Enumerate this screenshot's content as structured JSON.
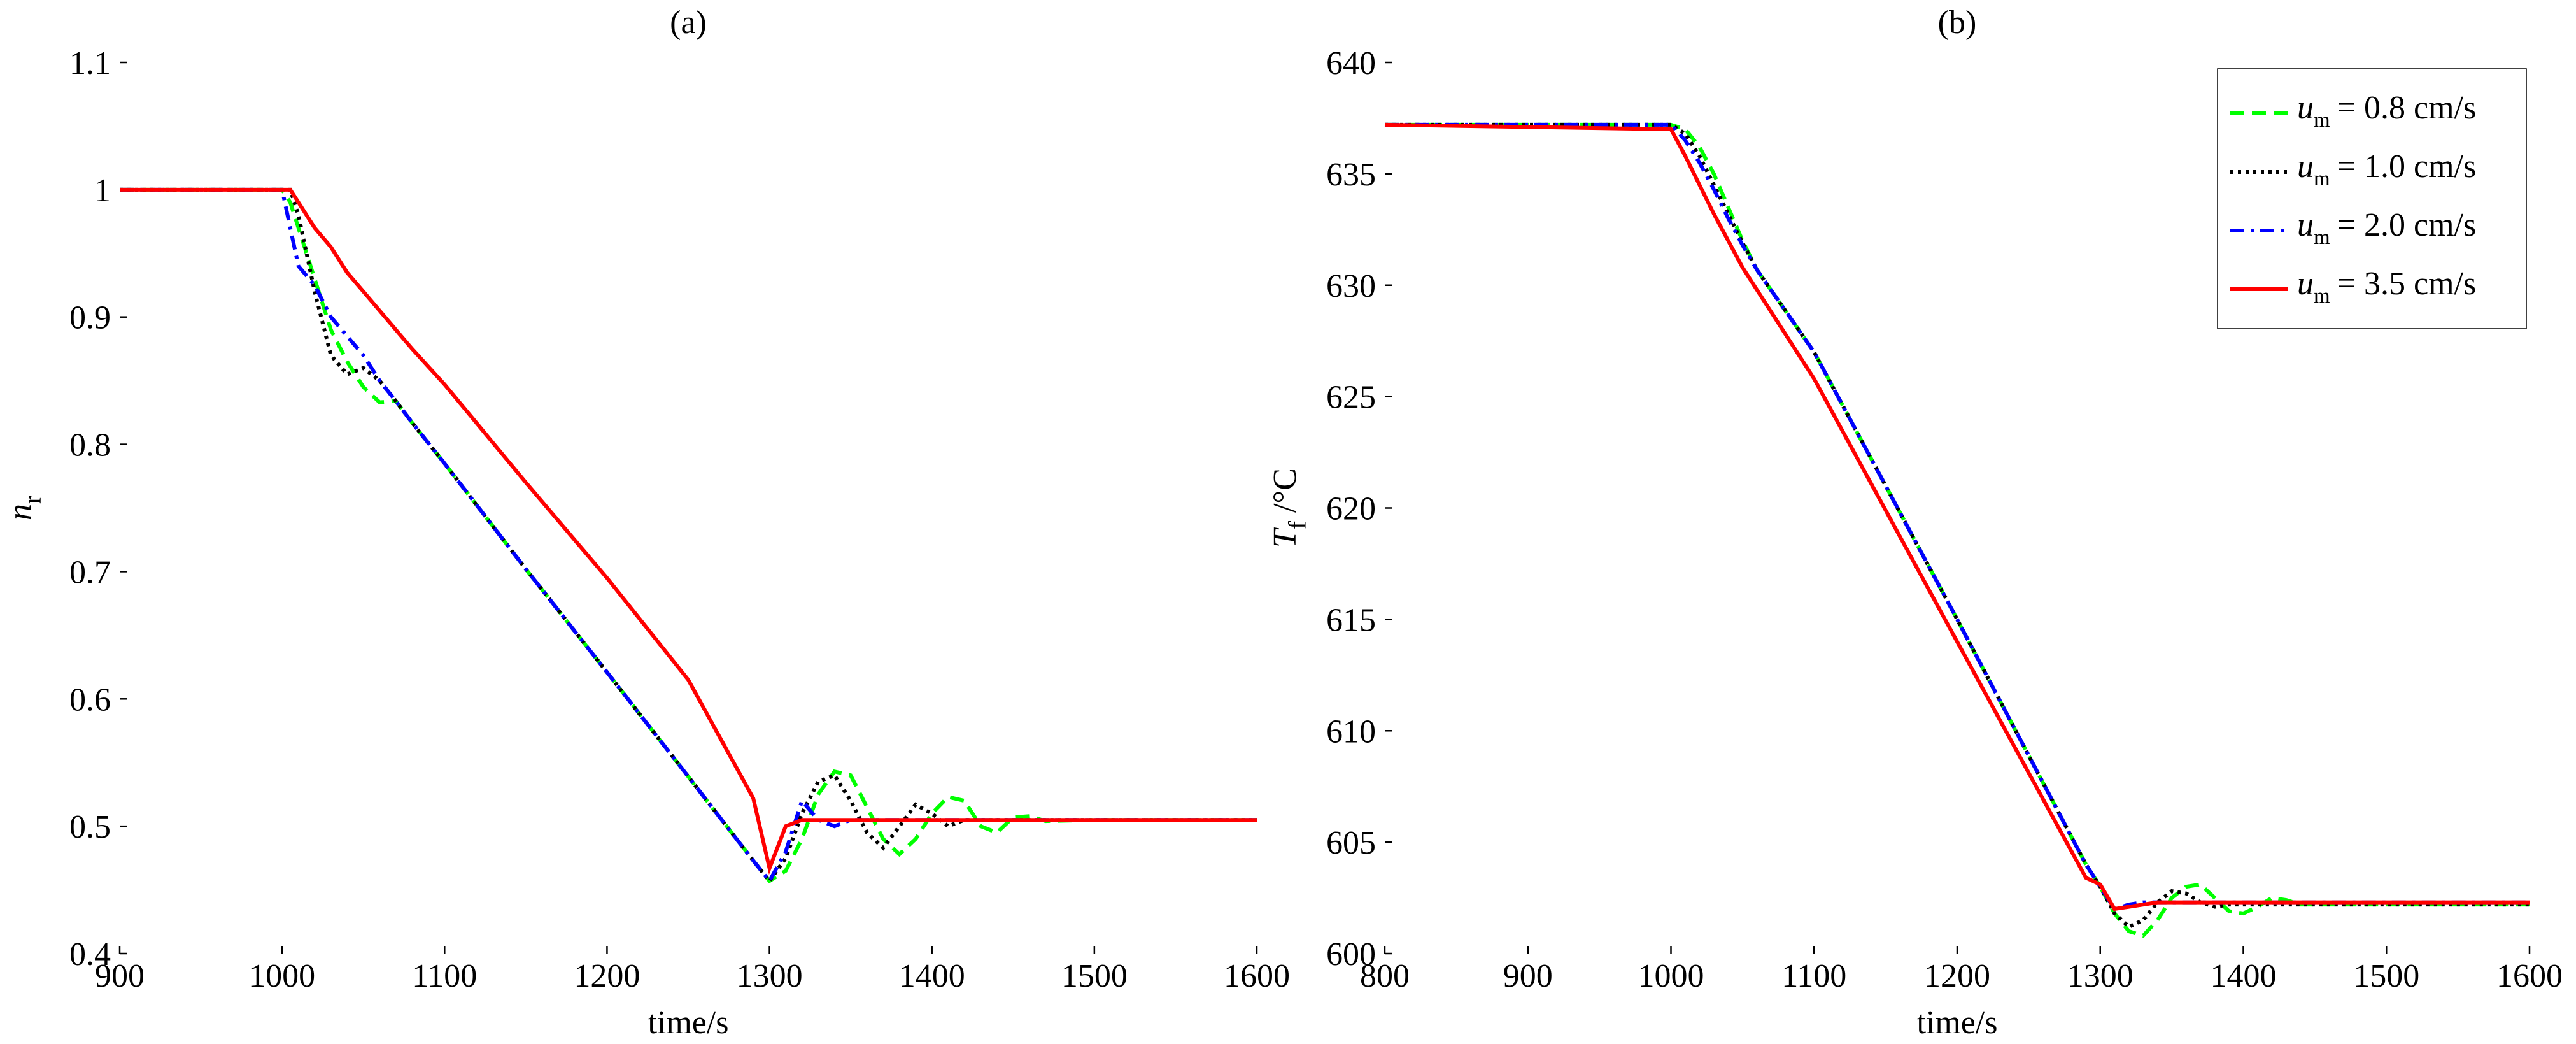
{
  "chart_data": [
    {
      "type": "line",
      "title": "(a)",
      "xlabel": "time/s",
      "ylabel": {
        "symbol": "n",
        "sub": "r"
      },
      "xlim": [
        900,
        1600
      ],
      "xticks": [
        900,
        1000,
        1100,
        1200,
        1300,
        1400,
        1500,
        1600
      ],
      "ylim": [
        0.4,
        1.1
      ],
      "yticks": [
        0.4,
        0.5,
        0.6,
        0.7,
        0.8,
        0.9,
        1,
        1.1
      ],
      "x": [
        900,
        1000,
        1005,
        1010,
        1020,
        1030,
        1040,
        1050,
        1060,
        1070,
        1080,
        1100,
        1150,
        1200,
        1250,
        1290,
        1300,
        1310,
        1320,
        1330,
        1340,
        1350,
        1360,
        1370,
        1380,
        1390,
        1400,
        1410,
        1420,
        1430,
        1440,
        1450,
        1460,
        1470,
        1500,
        1600
      ],
      "series": [
        {
          "color": "#00ff00",
          "style": "dashed",
          "values": [
            1,
            1,
            0.99,
            0.97,
            0.93,
            0.89,
            0.865,
            0.845,
            0.833,
            0.834,
            0.817,
            0.785,
            0.702,
            0.621,
            0.539,
            0.473,
            0.457,
            0.465,
            0.49,
            0.525,
            0.543,
            0.54,
            0.515,
            0.49,
            0.478,
            0.49,
            0.51,
            0.523,
            0.52,
            0.5,
            0.495,
            0.507,
            0.508,
            0.504,
            0.505,
            0.505
          ]
        },
        {
          "color": "#000000",
          "style": "dotted",
          "values": [
            1,
            1,
            1.0,
            0.98,
            0.92,
            0.87,
            0.855,
            0.86,
            0.85,
            0.834,
            0.817,
            0.785,
            0.702,
            0.621,
            0.539,
            0.473,
            0.457,
            0.475,
            0.51,
            0.535,
            0.54,
            0.52,
            0.495,
            0.483,
            0.5,
            0.517,
            0.51,
            0.5,
            0.505,
            0.505,
            0.505,
            0.505,
            0.505,
            0.505,
            0.505,
            0.505
          ]
        },
        {
          "color": "#0000ff",
          "style": "dashdot",
          "values": [
            1,
            1,
            0.97,
            0.94,
            0.925,
            0.9,
            0.885,
            0.87,
            0.85,
            0.834,
            0.817,
            0.785,
            0.702,
            0.621,
            0.539,
            0.473,
            0.457,
            0.48,
            0.52,
            0.505,
            0.5,
            0.505,
            0.505,
            0.505,
            0.505,
            0.505,
            0.505,
            0.505,
            0.505,
            0.505,
            0.505,
            0.505,
            0.505,
            0.505,
            0.505,
            0.505
          ]
        },
        {
          "color": "#ff0000",
          "style": "solid",
          "values": [
            1,
            1,
            1.0,
            0.99,
            0.97,
            0.955,
            0.935,
            0.92,
            0.905,
            0.89,
            0.875,
            0.847,
            0.77,
            0.695,
            0.615,
            0.522,
            0.467,
            0.5,
            0.505,
            0.505,
            0.505,
            0.505,
            0.505,
            0.505,
            0.505,
            0.505,
            0.505,
            0.505,
            0.505,
            0.505,
            0.505,
            0.505,
            0.505,
            0.505,
            0.505,
            0.505
          ]
        }
      ]
    },
    {
      "type": "line",
      "title": "(b)",
      "xlabel": "time/s",
      "ylabel": {
        "symbol": "T",
        "sub": "f",
        "text": "/°C"
      },
      "xlim": [
        800,
        1600
      ],
      "xticks": [
        800,
        900,
        1000,
        1100,
        1200,
        1300,
        1400,
        1500,
        1600
      ],
      "ylim": [
        600,
        640
      ],
      "yticks": [
        600,
        605,
        610,
        615,
        620,
        625,
        630,
        635,
        640
      ],
      "legend": "upper right",
      "x": [
        800,
        1000,
        1010,
        1020,
        1030,
        1040,
        1050,
        1060,
        1100,
        1200,
        1290,
        1300,
        1310,
        1320,
        1330,
        1340,
        1350,
        1360,
        1370,
        1380,
        1390,
        1400,
        1410,
        1420,
        1430,
        1440,
        1600
      ],
      "series": [
        {
          "name": {
            "symbol": "u",
            "sub": "m",
            "text": "= 0.8 cm/s"
          },
          "color": "#00ff00",
          "style": "dashed",
          "values": [
            637.2,
            637.2,
            637,
            636.2,
            635,
            633.5,
            632,
            630.7,
            627,
            615,
            604,
            603,
            601.8,
            601,
            600.8,
            601.5,
            602.5,
            603,
            603.1,
            602.5,
            601.9,
            601.8,
            602.1,
            602.5,
            602.4,
            602.2,
            602.2
          ]
        },
        {
          "name": {
            "symbol": "u",
            "sub": "m",
            "text": "= 1.0 cm/s"
          },
          "color": "#000000",
          "style": "dotted",
          "values": [
            637.2,
            637.2,
            636.8,
            635.8,
            634.5,
            633.2,
            631.9,
            630.7,
            627,
            615,
            604,
            603,
            601.8,
            601.2,
            601.5,
            602.3,
            602.8,
            602.7,
            602.3,
            602.1,
            602.2,
            602.2,
            602.2,
            602.2,
            602.2,
            602.2,
            602.2
          ]
        },
        {
          "name": {
            "symbol": "u",
            "sub": "m",
            "text": "= 2.0 cm/s"
          },
          "color": "#0000ff",
          "style": "dashdot",
          "values": [
            637.2,
            637.2,
            636.5,
            635.5,
            634.3,
            633,
            631.8,
            630.7,
            627,
            615,
            604,
            603,
            602,
            602.2,
            602.3,
            602.3,
            602.3,
            602.3,
            602.3,
            602.3,
            602.3,
            602.3,
            602.3,
            602.3,
            602.3,
            602.3,
            602.3
          ]
        },
        {
          "name": {
            "symbol": "u",
            "sub": "m",
            "text": "= 3.5 cm/s"
          },
          "color": "#ff0000",
          "style": "solid",
          "values": [
            637.2,
            637,
            635.8,
            634.5,
            633.2,
            632,
            630.8,
            629.8,
            625.8,
            614,
            603.4,
            603.1,
            602,
            602.1,
            602.2,
            602.3,
            602.3,
            602.3,
            602.3,
            602.3,
            602.3,
            602.3,
            602.3,
            602.3,
            602.3,
            602.3,
            602.3
          ]
        }
      ]
    }
  ]
}
